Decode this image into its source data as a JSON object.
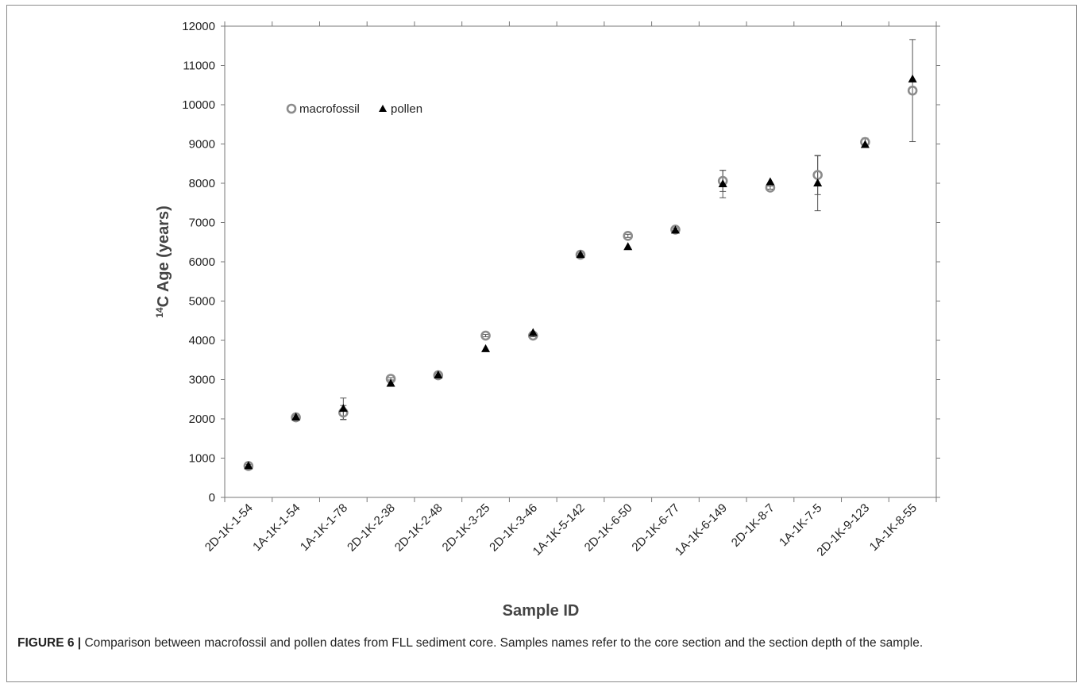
{
  "caption": {
    "label": "FIGURE 6 |",
    "text": " Comparison between macrofossil and pollen dates from FLL sediment core. Samples names refer to the core section and the section depth of the sample."
  },
  "chart_data": {
    "type": "scatter",
    "title": "",
    "xlabel": "Sample ID",
    "ylabel_prefix": "14",
    "ylabel": "C Age (years)",
    "ylim": [
      0,
      12000
    ],
    "ytick_step": 1000,
    "grid": false,
    "legend_position": "upper-left",
    "categories": [
      "2D-1K-1-54",
      "1A-1K-1-54",
      "1A-1K-1-78",
      "2D-1K-2-38",
      "2D-1K-2-48",
      "2D-1K-3-25",
      "2D-1K-3-46",
      "1A-1K-5-142",
      "2D-1K-6-50",
      "2D-1K-6-77",
      "1A-1K-6-149",
      "2D-1K-8-7",
      "1A-1K-7-5",
      "2D-1K-9-123",
      "1A-1K-8-55"
    ],
    "series": [
      {
        "name": "macrofossil",
        "marker": "open-circle",
        "color": "#8c8c8c",
        "values": [
          800,
          2040,
          2160,
          3020,
          3110,
          4120,
          4120,
          6180,
          6660,
          6820,
          8060,
          7890,
          8210,
          9050,
          10360
        ],
        "error": [
          40,
          40,
          180,
          30,
          30,
          30,
          30,
          40,
          40,
          40,
          270,
          40,
          500,
          100,
          1300
        ]
      },
      {
        "name": "pollen",
        "marker": "filled-triangle",
        "color": "#000000",
        "values": [
          800,
          2040,
          2260,
          2900,
          3110,
          3780,
          4190,
          6180,
          6380,
          6800,
          7980,
          8030,
          8000,
          8980,
          10650
        ],
        "error": [
          0,
          0,
          270,
          0,
          0,
          0,
          0,
          0,
          0,
          0,
          350,
          0,
          700,
          0,
          0
        ]
      }
    ]
  }
}
